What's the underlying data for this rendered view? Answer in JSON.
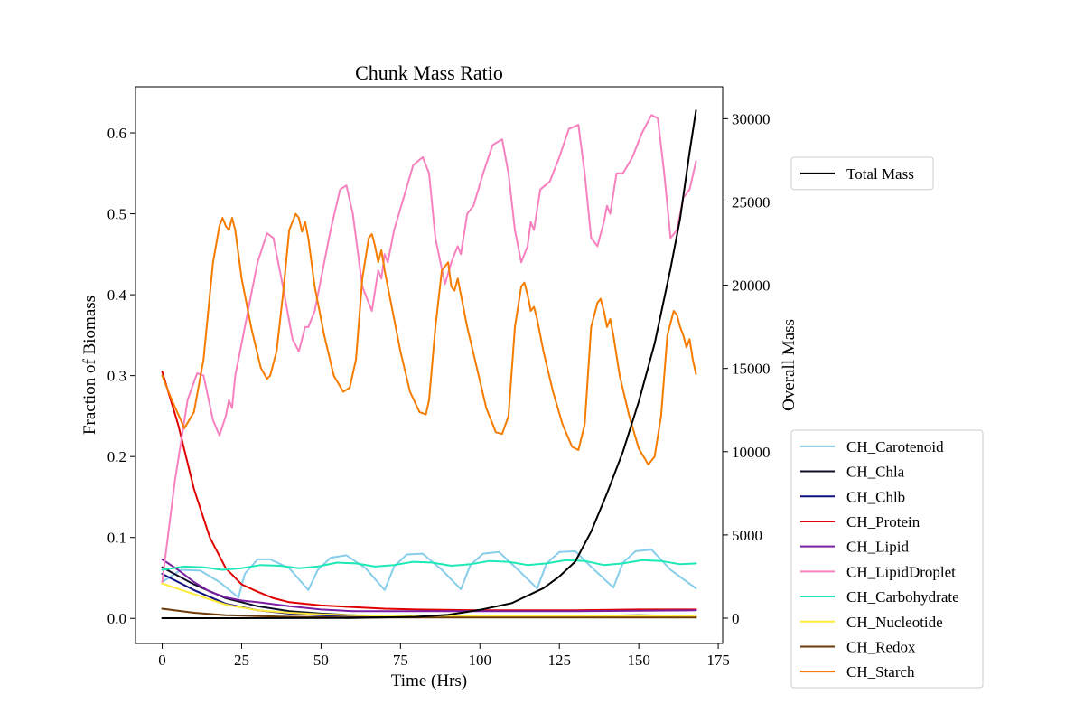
{
  "chart_data": {
    "type": "line",
    "title": "Chunk Mass Ratio",
    "xlabel": "Time (Hrs)",
    "ylabel": "Fraction of Biomass",
    "y2label": "Overall Mass",
    "xlim": [
      -8.4,
      176.4
    ],
    "ylim": [
      -0.031,
      0.657
    ],
    "y2lim": [
      -1520,
      31920
    ],
    "xticks": [
      "0",
      "25",
      "50",
      "75",
      "100",
      "125",
      "150",
      "175"
    ],
    "yticks": [
      "0.0",
      "0.1",
      "0.2",
      "0.3",
      "0.4",
      "0.5",
      "0.6"
    ],
    "y2ticks": [
      "0",
      "5000",
      "10000",
      "15000",
      "20000",
      "25000",
      "30000"
    ],
    "grid": false,
    "legend_right_axis": {
      "placement": "upper right, outside plot",
      "entries": [
        "Total Mass"
      ]
    },
    "legend_left_axis": {
      "placement": "lower right, outside plot",
      "entries": [
        "CH_Carotenoid",
        "CH_Chla",
        "CH_Chlb",
        "CH_Protein",
        "CH_Lipid",
        "CH_LipidDroplet",
        "CH_Carbohydrate",
        "CH_Nucleotide",
        "CH_Redox",
        "CH_Starch"
      ]
    },
    "series": [
      {
        "name": "CH_Carotenoid",
        "axis": "left",
        "color": "#87ceeb",
        "x": [
          0,
          6,
          12,
          18,
          24,
          26,
          30,
          34,
          40,
          46,
          49,
          53,
          58,
          64,
          70,
          73,
          77,
          82,
          88,
          94,
          97,
          101,
          106,
          112,
          118,
          121,
          125,
          130,
          136,
          142,
          145,
          149,
          154,
          160,
          168
        ],
        "y": [
          0.045,
          0.06,
          0.059,
          0.045,
          0.026,
          0.055,
          0.073,
          0.073,
          0.062,
          0.035,
          0.06,
          0.075,
          0.078,
          0.062,
          0.035,
          0.064,
          0.079,
          0.08,
          0.06,
          0.036,
          0.066,
          0.08,
          0.082,
          0.06,
          0.037,
          0.068,
          0.082,
          0.083,
          0.06,
          0.038,
          0.069,
          0.083,
          0.085,
          0.06,
          0.037
        ]
      },
      {
        "name": "CH_Chla",
        "axis": "left",
        "color": "#0f0f28",
        "x": [
          0,
          10,
          20,
          30,
          40,
          50,
          60,
          70,
          80,
          100,
          130,
          150,
          168
        ],
        "y": [
          0.063,
          0.042,
          0.025,
          0.015,
          0.009,
          0.006,
          0.004,
          0.002,
          0.002,
          0.003,
          0.003,
          0.004,
          0.003
        ]
      },
      {
        "name": "CH_Chlb",
        "axis": "left",
        "color": "#101080",
        "x": [
          0,
          10,
          20,
          30,
          40,
          50,
          60,
          70,
          80,
          100,
          130,
          150,
          168
        ],
        "y": [
          0.055,
          0.035,
          0.018,
          0.01,
          0.006,
          0.004,
          0.003,
          0.002,
          0.002,
          0.003,
          0.003,
          0.003,
          0.003
        ]
      },
      {
        "name": "CH_Protein",
        "axis": "left",
        "color": "#e00000",
        "x": [
          0,
          5,
          10,
          15,
          20,
          25,
          30,
          35,
          40,
          45,
          50,
          60,
          70,
          80,
          100,
          130,
          150,
          168
        ],
        "y": [
          0.305,
          0.24,
          0.16,
          0.1,
          0.062,
          0.042,
          0.033,
          0.025,
          0.02,
          0.018,
          0.016,
          0.014,
          0.012,
          0.011,
          0.01,
          0.01,
          0.011,
          0.011
        ]
      },
      {
        "name": "CH_Lipid",
        "axis": "left",
        "color": "#7b1fa2",
        "x": [
          0,
          5,
          10,
          15,
          20,
          25,
          30,
          40,
          50,
          60,
          80,
          100,
          130,
          168
        ],
        "y": [
          0.073,
          0.06,
          0.045,
          0.033,
          0.026,
          0.022,
          0.02,
          0.015,
          0.011,
          0.009,
          0.009,
          0.009,
          0.009,
          0.01
        ]
      },
      {
        "name": "CH_LipidDroplet",
        "axis": "left",
        "color": "#f781bf",
        "x": [
          0,
          4,
          8,
          11,
          13,
          16,
          18,
          20,
          21,
          22,
          23,
          25,
          27,
          30,
          33,
          35,
          38,
          41,
          43,
          45,
          46,
          48,
          50,
          53,
          56,
          58,
          60,
          63,
          66,
          68,
          69,
          70,
          71,
          73,
          76,
          79,
          82,
          84,
          86,
          89,
          91,
          93,
          94,
          96,
          98,
          101,
          104,
          107,
          109,
          111,
          113,
          115,
          116,
          117,
          119,
          122,
          125,
          128,
          131,
          133,
          135,
          137,
          139,
          140,
          141,
          143,
          145,
          148,
          151,
          154,
          156,
          158,
          160,
          162,
          164,
          166,
          168
        ],
        "y": [
          0.045,
          0.17,
          0.27,
          0.303,
          0.3,
          0.245,
          0.226,
          0.25,
          0.27,
          0.26,
          0.3,
          0.34,
          0.38,
          0.44,
          0.476,
          0.47,
          0.41,
          0.345,
          0.33,
          0.36,
          0.36,
          0.38,
          0.42,
          0.48,
          0.53,
          0.535,
          0.5,
          0.41,
          0.38,
          0.43,
          0.42,
          0.45,
          0.44,
          0.48,
          0.52,
          0.56,
          0.57,
          0.55,
          0.47,
          0.413,
          0.44,
          0.46,
          0.45,
          0.5,
          0.51,
          0.55,
          0.585,
          0.592,
          0.55,
          0.48,
          0.44,
          0.46,
          0.49,
          0.48,
          0.53,
          0.54,
          0.57,
          0.605,
          0.61,
          0.55,
          0.47,
          0.46,
          0.49,
          0.51,
          0.5,
          0.55,
          0.55,
          0.57,
          0.6,
          0.622,
          0.618,
          0.55,
          0.47,
          0.48,
          0.52,
          0.53,
          0.565
        ]
      },
      {
        "name": "CH_Carbohydrate",
        "axis": "left",
        "color": "#1de9b6",
        "x": [
          0,
          7,
          13,
          19,
          25,
          31,
          37,
          43,
          49,
          55,
          61,
          67,
          73,
          79,
          85,
          91,
          97,
          103,
          109,
          115,
          121,
          127,
          133,
          139,
          145,
          151,
          157,
          163,
          168
        ],
        "y": [
          0.06,
          0.064,
          0.063,
          0.06,
          0.062,
          0.066,
          0.065,
          0.062,
          0.064,
          0.069,
          0.068,
          0.064,
          0.066,
          0.07,
          0.069,
          0.065,
          0.067,
          0.071,
          0.07,
          0.066,
          0.068,
          0.072,
          0.071,
          0.066,
          0.068,
          0.072,
          0.071,
          0.067,
          0.068
        ]
      },
      {
        "name": "CH_Nucleotide",
        "axis": "left",
        "color": "#ffeb3b",
        "x": [
          0,
          10,
          20,
          30,
          40,
          50,
          60,
          80,
          100,
          130,
          168
        ],
        "y": [
          0.043,
          0.03,
          0.017,
          0.01,
          0.007,
          0.005,
          0.004,
          0.003,
          0.003,
          0.003,
          0.003
        ]
      },
      {
        "name": "CH_Redox",
        "axis": "left",
        "color": "#6d3a09",
        "x": [
          0,
          10,
          20,
          30,
          40,
          60,
          80,
          100,
          130,
          168
        ],
        "y": [
          0.012,
          0.007,
          0.004,
          0.003,
          0.002,
          0.001,
          0.001,
          0.001,
          0.001,
          0.001
        ]
      },
      {
        "name": "CH_Starch",
        "axis": "left",
        "color": "#f57c00",
        "x": [
          0,
          3,
          7,
          10,
          13,
          16,
          18,
          19,
          20,
          21,
          22,
          23,
          25,
          28,
          31,
          33,
          34,
          36,
          38,
          40,
          42,
          43,
          44,
          45,
          46,
          48,
          51,
          54,
          57,
          59,
          61,
          63,
          65,
          66,
          67,
          68,
          69,
          70,
          72,
          75,
          78,
          81,
          83,
          84,
          86,
          88,
          90,
          91,
          92,
          93,
          94,
          96,
          99,
          102,
          105,
          107,
          109,
          111,
          113,
          114,
          115,
          116,
          117,
          118,
          120,
          123,
          126,
          129,
          131,
          133,
          135,
          137,
          138,
          139,
          140,
          141,
          142,
          144,
          147,
          150,
          153,
          155,
          157,
          159,
          161,
          162,
          163,
          164,
          165,
          166,
          167,
          168
        ],
        "y": [
          0.3,
          0.27,
          0.235,
          0.255,
          0.32,
          0.44,
          0.485,
          0.495,
          0.485,
          0.48,
          0.495,
          0.48,
          0.42,
          0.36,
          0.31,
          0.296,
          0.3,
          0.33,
          0.4,
          0.48,
          0.5,
          0.495,
          0.478,
          0.49,
          0.47,
          0.41,
          0.35,
          0.3,
          0.28,
          0.285,
          0.32,
          0.42,
          0.47,
          0.475,
          0.46,
          0.44,
          0.455,
          0.43,
          0.39,
          0.33,
          0.28,
          0.255,
          0.252,
          0.27,
          0.36,
          0.43,
          0.44,
          0.41,
          0.405,
          0.42,
          0.4,
          0.36,
          0.31,
          0.26,
          0.23,
          0.228,
          0.25,
          0.36,
          0.41,
          0.415,
          0.4,
          0.38,
          0.385,
          0.37,
          0.33,
          0.28,
          0.24,
          0.212,
          0.208,
          0.24,
          0.36,
          0.39,
          0.395,
          0.38,
          0.36,
          0.37,
          0.35,
          0.3,
          0.25,
          0.21,
          0.19,
          0.2,
          0.25,
          0.35,
          0.38,
          0.375,
          0.36,
          0.35,
          0.335,
          0.345,
          0.32,
          0.302
        ]
      },
      {
        "name": "Total Mass",
        "axis": "right",
        "color": "#000000",
        "x": [
          0,
          20,
          40,
          60,
          80,
          90,
          100,
          110,
          120,
          125,
          130,
          135,
          140,
          145,
          150,
          155,
          160,
          163,
          166,
          168
        ],
        "y": [
          0,
          0,
          5,
          10,
          80,
          200,
          500,
          900,
          1800,
          2500,
          3400,
          5200,
          7500,
          10000,
          13000,
          16500,
          21000,
          24000,
          28000,
          30500
        ]
      }
    ]
  }
}
